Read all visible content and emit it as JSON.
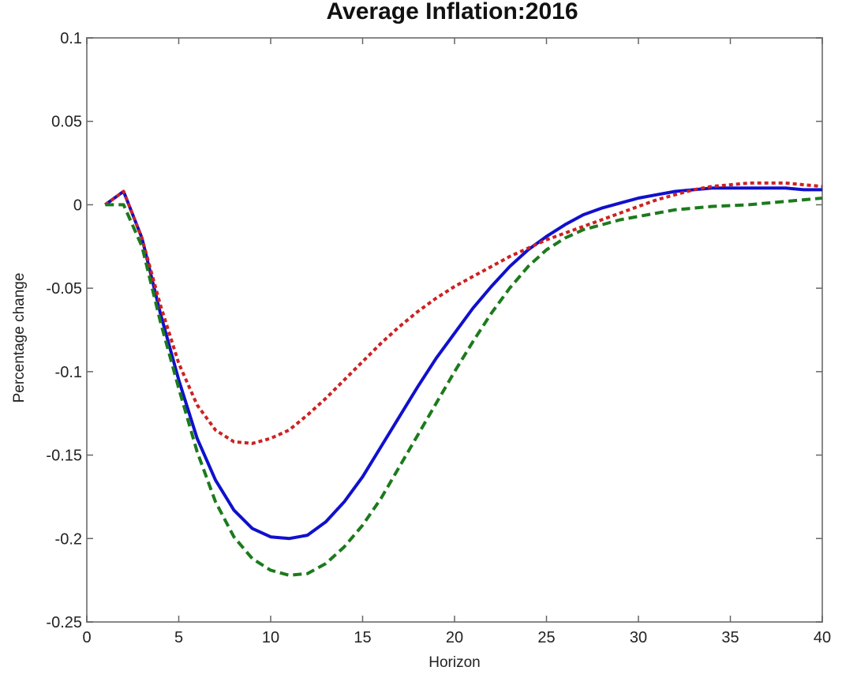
{
  "chart_data": {
    "type": "line",
    "title": "Average Inflation:2016",
    "xlabel": "Horizon",
    "ylabel": "Percentage change",
    "xlim": [
      0,
      40
    ],
    "ylim": [
      -0.25,
      0.1
    ],
    "xticks": [
      0,
      5,
      10,
      15,
      20,
      25,
      30,
      35,
      40
    ],
    "xtick_labels": [
      "0",
      "5",
      "10",
      "15",
      "20",
      "25",
      "30",
      "35",
      "40"
    ],
    "yticks": [
      0.1,
      0.05,
      0,
      -0.05,
      -0.1,
      -0.15,
      -0.2,
      -0.25
    ],
    "ytick_labels": [
      "0.1",
      "0.05",
      "0",
      "-0.05",
      "-0.1",
      "-0.15",
      "-0.2",
      "-0.25"
    ],
    "grid": false,
    "legend": "none",
    "series": [
      {
        "color": "#1010cc",
        "style": "solid",
        "x": [
          1,
          2,
          3,
          4,
          5,
          6,
          7,
          8,
          9,
          10,
          11,
          12,
          13,
          14,
          15,
          16,
          17,
          18,
          19,
          20,
          21,
          22,
          23,
          24,
          25,
          26,
          27,
          28,
          29,
          30,
          31,
          32,
          33,
          34,
          35,
          36,
          37,
          38,
          39,
          40
        ],
        "y": [
          0,
          0.008,
          -0.02,
          -0.065,
          -0.105,
          -0.14,
          -0.165,
          -0.183,
          -0.194,
          -0.199,
          -0.2,
          -0.198,
          -0.19,
          -0.178,
          -0.163,
          -0.145,
          -0.127,
          -0.109,
          -0.092,
          -0.077,
          -0.062,
          -0.049,
          -0.037,
          -0.027,
          -0.019,
          -0.012,
          -0.006,
          -0.002,
          0.001,
          0.004,
          0.006,
          0.008,
          0.009,
          0.01,
          0.01,
          0.01,
          0.01,
          0.01,
          0.009,
          0.009
        ]
      },
      {
        "color": "#cc2222",
        "style": "dotted",
        "x": [
          1,
          2,
          3,
          4,
          5,
          6,
          7,
          8,
          9,
          10,
          11,
          12,
          13,
          14,
          15,
          16,
          17,
          18,
          19,
          20,
          21,
          22,
          23,
          24,
          25,
          26,
          27,
          28,
          29,
          30,
          31,
          32,
          33,
          34,
          35,
          36,
          37,
          38,
          39,
          40
        ],
        "y": [
          0,
          0.008,
          -0.02,
          -0.06,
          -0.095,
          -0.12,
          -0.135,
          -0.142,
          -0.143,
          -0.14,
          -0.135,
          -0.126,
          -0.116,
          -0.105,
          -0.094,
          -0.083,
          -0.073,
          -0.064,
          -0.056,
          -0.049,
          -0.043,
          -0.037,
          -0.031,
          -0.026,
          -0.021,
          -0.017,
          -0.013,
          -0.009,
          -0.005,
          -0.001,
          0.003,
          0.006,
          0.009,
          0.011,
          0.012,
          0.013,
          0.013,
          0.013,
          0.012,
          0.011
        ]
      },
      {
        "color": "#1c7a1c",
        "style": "dashed",
        "x": [
          1,
          2,
          3,
          4,
          5,
          6,
          7,
          8,
          9,
          10,
          11,
          12,
          13,
          14,
          15,
          16,
          17,
          18,
          19,
          20,
          21,
          22,
          23,
          24,
          25,
          26,
          27,
          28,
          29,
          30,
          31,
          32,
          33,
          34,
          35,
          36,
          37,
          38,
          39,
          40
        ],
        "y": [
          0,
          0,
          -0.025,
          -0.07,
          -0.11,
          -0.148,
          -0.178,
          -0.199,
          -0.212,
          -0.219,
          -0.222,
          -0.221,
          -0.215,
          -0.205,
          -0.192,
          -0.176,
          -0.157,
          -0.138,
          -0.119,
          -0.1,
          -0.082,
          -0.065,
          -0.05,
          -0.037,
          -0.027,
          -0.02,
          -0.015,
          -0.012,
          -0.009,
          -0.007,
          -0.005,
          -0.003,
          -0.002,
          -0.001,
          -0.0005,
          0,
          0.001,
          0.002,
          0.003,
          0.004
        ]
      }
    ]
  }
}
